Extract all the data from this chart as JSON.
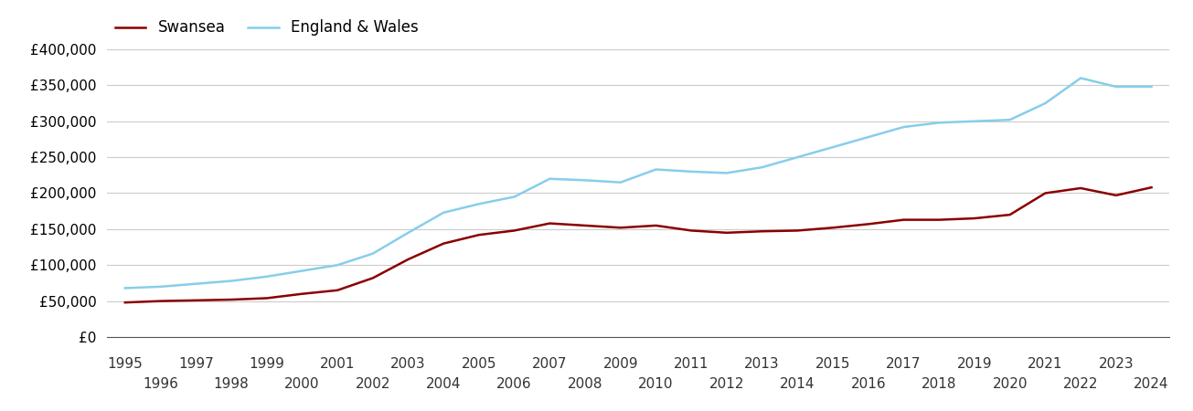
{
  "years": [
    1995,
    1996,
    1997,
    1998,
    1999,
    2000,
    2001,
    2002,
    2003,
    2004,
    2005,
    2006,
    2007,
    2008,
    2009,
    2010,
    2011,
    2012,
    2013,
    2014,
    2015,
    2016,
    2017,
    2018,
    2019,
    2020,
    2021,
    2022,
    2023,
    2024
  ],
  "swansea": [
    48000,
    50000,
    51000,
    52000,
    54000,
    60000,
    65000,
    82000,
    108000,
    130000,
    142000,
    148000,
    158000,
    155000,
    152000,
    155000,
    148000,
    145000,
    147000,
    148000,
    152000,
    157000,
    163000,
    163000,
    165000,
    170000,
    200000,
    207000,
    197000,
    208000
  ],
  "england_wales": [
    68000,
    70000,
    74000,
    78000,
    84000,
    92000,
    100000,
    116000,
    145000,
    173000,
    185000,
    195000,
    220000,
    218000,
    215000,
    233000,
    230000,
    228000,
    236000,
    250000,
    264000,
    278000,
    292000,
    298000,
    300000,
    302000,
    325000,
    360000,
    348000,
    348000
  ],
  "swansea_color": "#8B0000",
  "england_wales_color": "#87CEEB",
  "swansea_label": "Swansea",
  "england_wales_label": "England & Wales",
  "ylim": [
    0,
    400000
  ],
  "yticks": [
    0,
    50000,
    100000,
    150000,
    200000,
    250000,
    300000,
    350000,
    400000
  ],
  "background_color": "#ffffff",
  "grid_color": "#cccccc",
  "line_width": 1.8,
  "legend_fontsize": 12,
  "tick_fontsize": 11
}
